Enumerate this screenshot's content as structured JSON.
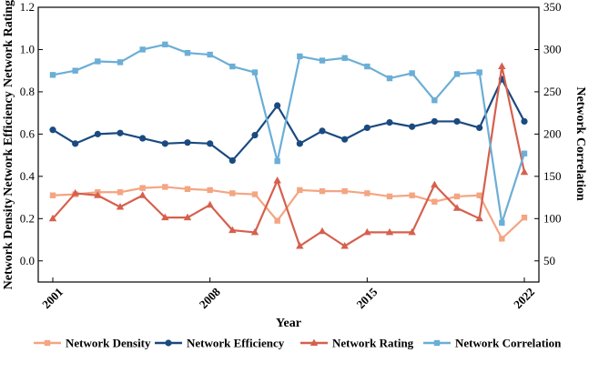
{
  "chart_data": {
    "type": "line",
    "x": [
      2001,
      2002,
      2003,
      2004,
      2005,
      2006,
      2007,
      2008,
      2009,
      2010,
      2011,
      2012,
      2013,
      2014,
      2015,
      2016,
      2017,
      2018,
      2019,
      2020,
      2021,
      2022
    ],
    "xlabel": "Year",
    "xticks": [
      2001,
      2008,
      2015,
      2022
    ],
    "xtick_labels": [
      "2001",
      "2008",
      "2015",
      "2022"
    ],
    "left_axis": {
      "ylim": [
        -0.1,
        1.2
      ],
      "ticks": [
        0.0,
        0.2,
        0.4,
        0.6,
        0.8,
        1.0,
        1.2
      ],
      "tick_labels": [
        "0.0",
        "0.2",
        "0.4",
        "0.6",
        "0.8",
        "1.0",
        "1.2"
      ],
      "labels": [
        "Network Density",
        "Network Efficiency",
        "Network Rating"
      ]
    },
    "right_axis": {
      "ylim": [
        25,
        350
      ],
      "ticks": [
        50,
        100,
        150,
        200,
        250,
        300,
        350
      ],
      "tick_labels": [
        "50",
        "100",
        "150",
        "200",
        "250",
        "300",
        "350"
      ],
      "label": "Network Correlation"
    },
    "series": [
      {
        "name": "Network Density",
        "axis": "left",
        "color": "#f4a582",
        "marker": "square",
        "values": [
          0.31,
          0.315,
          0.325,
          0.325,
          0.345,
          0.35,
          0.34,
          0.335,
          0.32,
          0.315,
          0.19,
          0.335,
          0.33,
          0.33,
          0.32,
          0.305,
          0.31,
          0.28,
          0.305,
          0.31,
          0.105,
          0.205
        ]
      },
      {
        "name": "Network Efficiency",
        "axis": "left",
        "color": "#1a4a80",
        "marker": "circle",
        "values": [
          0.62,
          0.555,
          0.6,
          0.605,
          0.58,
          0.555,
          0.56,
          0.555,
          0.475,
          0.595,
          0.735,
          0.555,
          0.615,
          0.575,
          0.63,
          0.655,
          0.635,
          0.66,
          0.66,
          0.63,
          0.86,
          0.66
        ]
      },
      {
        "name": "Network Rating",
        "axis": "left",
        "color": "#d6604d",
        "marker": "triangle",
        "values": [
          0.2,
          0.32,
          0.31,
          0.255,
          0.31,
          0.205,
          0.205,
          0.265,
          0.145,
          0.135,
          0.38,
          0.07,
          0.14,
          0.07,
          0.135,
          0.135,
          0.135,
          0.36,
          0.25,
          0.2,
          0.92,
          0.42
        ]
      },
      {
        "name": "Network Correlation",
        "axis": "right",
        "color": "#6baed6",
        "marker": "square",
        "values": [
          270,
          275,
          286,
          285,
          300,
          306,
          296,
          294,
          280,
          273,
          168,
          292,
          287,
          290,
          280,
          266,
          272,
          240,
          271,
          273,
          95,
          177
        ]
      }
    ]
  }
}
